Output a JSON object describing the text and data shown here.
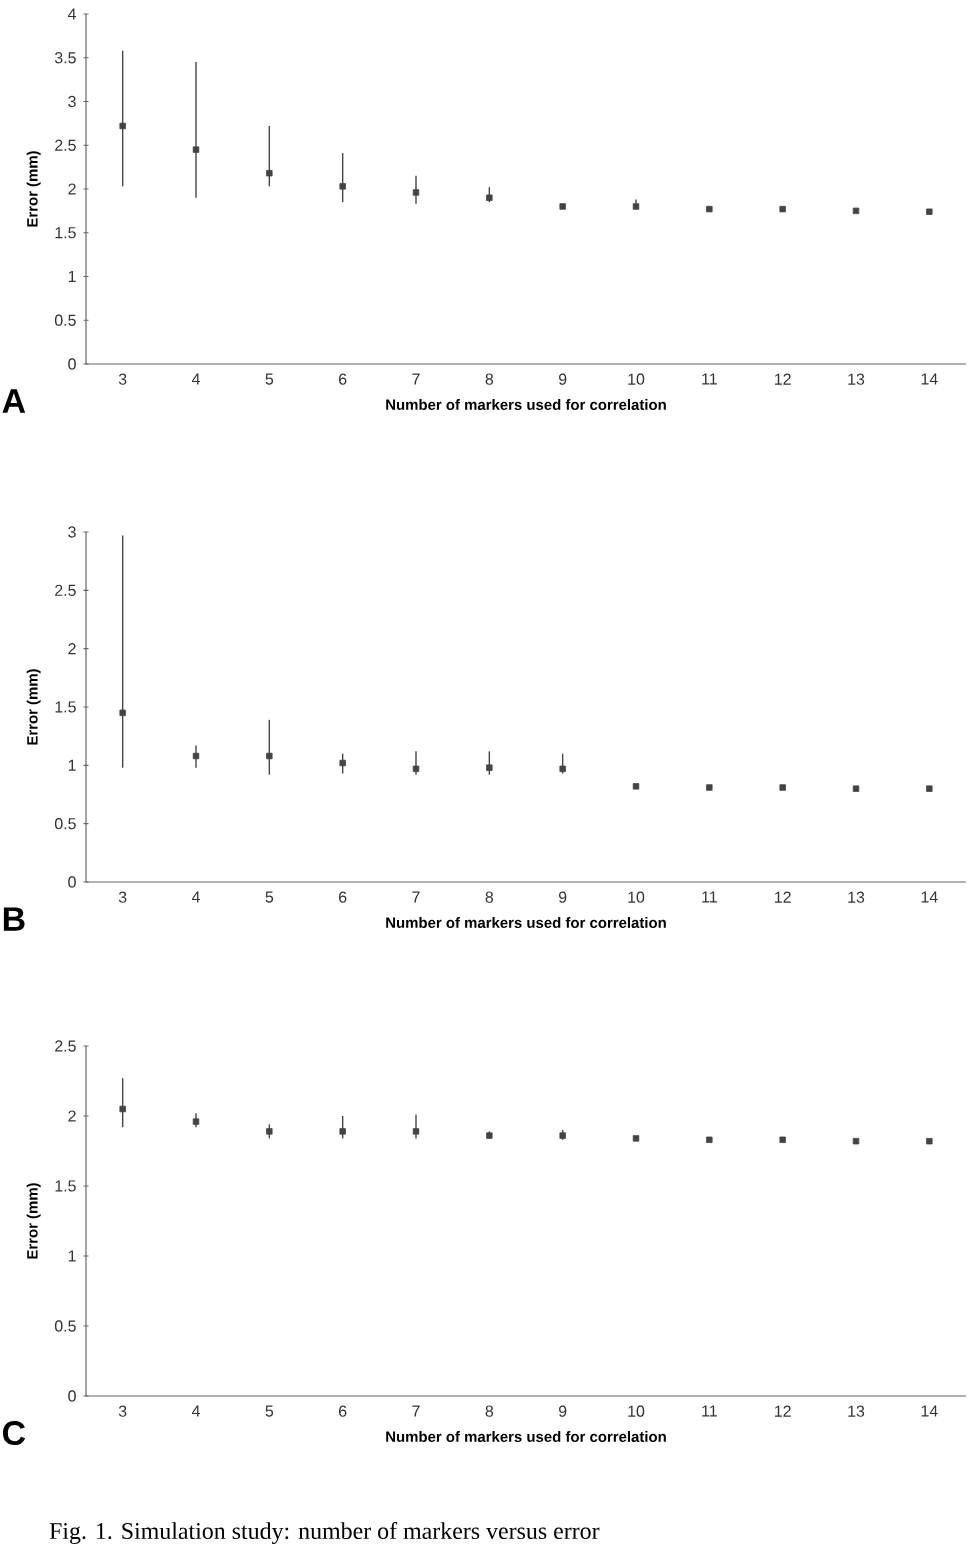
{
  "chart_data": [
    {
      "type": "scatter",
      "marker": "square",
      "title": "A",
      "xlabel": "Number of markers used for correlation",
      "ylabel": "Error (mm)",
      "color": "#444444",
      "categories": [
        "3",
        "4",
        "5",
        "6",
        "7",
        "8",
        "9",
        "10",
        "11",
        "12",
        "13",
        "14"
      ],
      "values": [
        2.72,
        2.45,
        2.18,
        2.03,
        1.96,
        1.9,
        1.8,
        1.8,
        1.77,
        1.77,
        1.75,
        1.74
      ],
      "errors": [
        [
          2.03,
          3.58
        ],
        [
          1.9,
          3.45
        ],
        [
          2.03,
          2.72
        ],
        [
          1.85,
          2.41
        ],
        [
          1.83,
          2.15
        ],
        [
          1.85,
          2.02
        ],
        null,
        [
          1.78,
          1.88
        ],
        null,
        null,
        null,
        null
      ],
      "ylim": [
        0,
        4
      ],
      "yticks": [
        0,
        0.5,
        1,
        1.5,
        2,
        2.5,
        3,
        3.5,
        4
      ]
    },
    {
      "type": "scatter",
      "marker": "square",
      "title": "B",
      "xlabel": "Number of markers used for correlation",
      "ylabel": "Error (mm)",
      "color": "#444444",
      "categories": [
        "3",
        "4",
        "5",
        "6",
        "7",
        "8",
        "9",
        "10",
        "11",
        "12",
        "13",
        "14"
      ],
      "values": [
        1.45,
        1.08,
        1.08,
        1.02,
        0.97,
        0.98,
        0.97,
        0.82,
        0.81,
        0.81,
        0.8,
        0.8
      ],
      "errors": [
        [
          0.98,
          2.97
        ],
        [
          0.98,
          1.17
        ],
        [
          0.92,
          1.39
        ],
        [
          0.93,
          1.1
        ],
        [
          0.92,
          1.12
        ],
        [
          0.92,
          1.12
        ],
        [
          0.93,
          1.1
        ],
        null,
        null,
        null,
        null,
        null
      ],
      "ylim": [
        0,
        3
      ],
      "yticks": [
        0,
        0.5,
        1,
        1.5,
        2,
        2.5,
        3
      ]
    },
    {
      "type": "scatter",
      "marker": "square",
      "title": "C",
      "xlabel": "Number of markers used for correlation",
      "ylabel": "Error (mm)",
      "color": "#444444",
      "categories": [
        "3",
        "4",
        "5",
        "6",
        "7",
        "8",
        "9",
        "10",
        "11",
        "12",
        "13",
        "14"
      ],
      "values": [
        2.05,
        1.96,
        1.89,
        1.89,
        1.89,
        1.86,
        1.86,
        1.84,
        1.83,
        1.83,
        1.82,
        1.82
      ],
      "errors": [
        [
          1.92,
          2.27
        ],
        [
          1.92,
          2.02
        ],
        [
          1.84,
          1.94
        ],
        [
          1.84,
          2.0
        ],
        [
          1.84,
          2.01
        ],
        [
          1.84,
          1.89
        ],
        [
          1.83,
          1.9
        ],
        null,
        null,
        null,
        null,
        null
      ],
      "ylim": [
        0,
        2.5
      ],
      "yticks": [
        0,
        0.5,
        1,
        1.5,
        2,
        2.5
      ],
      "annotations": [
        "Fig. 1. Simulation study: number of markers versus error"
      ]
    }
  ]
}
